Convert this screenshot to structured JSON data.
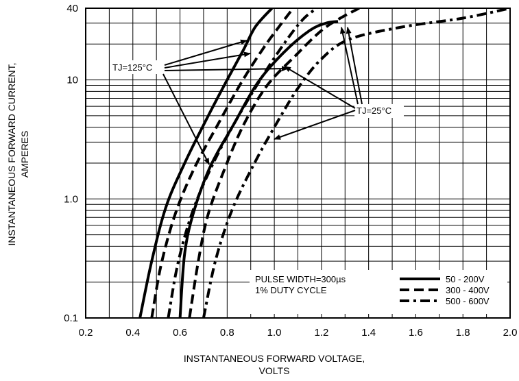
{
  "chart_data": {
    "type": "line",
    "x_scale": "linear",
    "y_scale": "log",
    "xlim": [
      0.2,
      2.0
    ],
    "ylim": [
      0.1,
      40
    ],
    "x_ticks": [
      "0.2",
      "0.4",
      "0.6",
      "0.8",
      "1.0",
      "1.2",
      "1.4",
      "1.6",
      "1.8",
      "2.0"
    ],
    "y_ticks": [
      "0.1",
      "1.0",
      "10",
      "40"
    ],
    "xlabel_line1": "INSTANTANEOUS FORWARD VOLTAGE,",
    "xlabel_line2": "VOLTS",
    "ylabel_line1": "INSTANTANEOUS FORWARD CURRENT,",
    "ylabel_line2": "AMPERES",
    "grid": true,
    "annotations": {
      "tj125": "TJ=125°C",
      "tj25": "TJ=25°C",
      "pulse_line1": "PULSE WIDTH=300µs",
      "pulse_line2": "1% DUTY CYCLE"
    },
    "legend_position": "bottom-right",
    "series": [
      {
        "name": "50 - 200V",
        "group": "TJ=125°C",
        "style": "solid",
        "x": [
          0.43,
          0.48,
          0.54,
          0.62,
          0.72,
          0.8,
          0.87,
          0.92,
          0.99
        ],
        "y": [
          0.1,
          0.3,
          0.85,
          2.0,
          5.0,
          10,
          18,
          28,
          40
        ]
      },
      {
        "name": "50 - 200V",
        "group": "TJ=25°C",
        "style": "solid",
        "x": [
          0.6,
          0.62,
          0.66,
          0.73,
          0.83,
          0.93,
          1.04,
          1.15,
          1.22,
          1.27
        ],
        "y": [
          0.1,
          0.35,
          0.8,
          1.9,
          4.3,
          9.5,
          17,
          26,
          30,
          31
        ]
      },
      {
        "name": "300 - 400V",
        "group": "TJ=125°C",
        "style": "dashed",
        "x": [
          0.48,
          0.52,
          0.58,
          0.66,
          0.76,
          0.86,
          0.95,
          1.02,
          1.08
        ],
        "y": [
          0.1,
          0.28,
          0.75,
          1.8,
          4.2,
          9.5,
          18,
          28,
          40
        ]
      },
      {
        "name": "300 - 400V",
        "group": "TJ=25°C",
        "style": "dashed",
        "x": [
          0.64,
          0.68,
          0.72,
          0.79,
          0.87,
          0.97,
          1.09,
          1.2,
          1.28,
          1.36
        ],
        "y": [
          0.1,
          0.32,
          0.75,
          1.8,
          4.2,
          9,
          16,
          26,
          33,
          40
        ]
      },
      {
        "name": "500 - 600V",
        "group": "TJ=125°C",
        "style": "dashdot",
        "x": [
          0.55,
          0.59,
          0.65,
          0.73,
          0.83,
          0.94,
          1.04,
          1.12,
          1.18
        ],
        "y": [
          0.1,
          0.28,
          0.75,
          1.8,
          4.3,
          10,
          20,
          32,
          40
        ]
      },
      {
        "name": "500 - 600V",
        "group": "TJ=25°C",
        "style": "dashdot",
        "x": [
          0.7,
          0.75,
          0.82,
          0.91,
          1.0,
          1.1,
          1.2,
          1.32,
          1.55,
          1.8,
          2.0
        ],
        "y": [
          0.1,
          0.3,
          0.8,
          1.9,
          4.0,
          8.5,
          15,
          22,
          28,
          33,
          40
        ]
      }
    ]
  }
}
